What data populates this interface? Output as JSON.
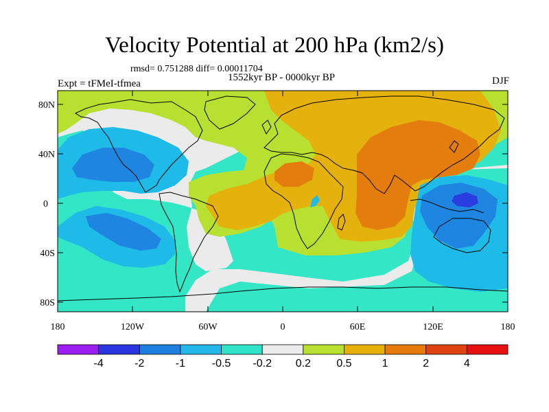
{
  "header": {
    "title": "Velocity Potential at 200 hPa (km2/s)",
    "stats": "rmsd= 0.751288 diff= 0.00011704",
    "period": "1552kyr BP - 0000kyr BP",
    "experiment": "Expt = tFMeI-tfmea",
    "season": "DJF"
  },
  "axes": {
    "y_ticks": [
      "80N",
      "40N",
      "0",
      "40S",
      "80S"
    ],
    "x_ticks": [
      "180",
      "120W",
      "60W",
      "0",
      "60E",
      "120E",
      "180"
    ]
  },
  "colorbar": {
    "labels": [
      "-4",
      "-2",
      "-1",
      "-0.5",
      "-0.2",
      "0.2",
      "0.5",
      "1",
      "2",
      "4"
    ],
    "colors": [
      "#9a1ff0",
      "#2a35e0",
      "#1e7fe0",
      "#23b8e8",
      "#2ee3c8",
      "#ececec",
      "#b7e12e",
      "#e6b10b",
      "#e67a0c",
      "#e04312",
      "#e81010"
    ]
  },
  "palette": {
    "sea": "#33e6c6",
    "neutral": "#ebebeb",
    "light_blue": "#1fbbe8",
    "blue": "#1e86e0",
    "dark_blue": "#2a3de0",
    "green": "#b8e030",
    "yellow_orange": "#e5b20d",
    "orange": "#e37d0e"
  }
}
